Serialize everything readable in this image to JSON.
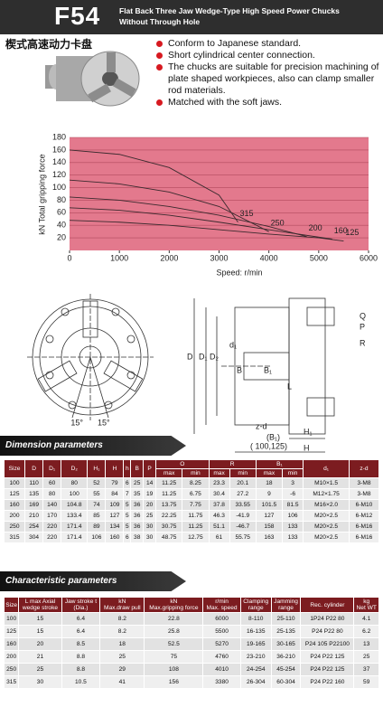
{
  "header": {
    "model": "F54",
    "title": "Flat Back Three Jaw Wedge-Type High Speed Power Chucks Without Through Hole",
    "subtitle_cn": "楔式高速动力卡盘"
  },
  "features": [
    "Conform to Japanese standard.",
    "Short cylindrical center connection.",
    "The chucks are suitable for precision machining of plate shaped workpieces, also can clamp smaller rod materials.",
    "Matched with the soft jaws."
  ],
  "chart_data": {
    "type": "line",
    "x_label": "Speed:  r/min",
    "y_label": "kN  Total gripping force",
    "xlim": [
      0,
      6000
    ],
    "xticks": [
      0,
      1000,
      2000,
      3000,
      4000,
      5000,
      6000
    ],
    "ylim": [
      0,
      180
    ],
    "yticks": [
      20,
      40,
      60,
      80,
      100,
      120,
      140,
      160,
      180
    ],
    "grid": true,
    "background": "#e3798d",
    "series": [
      {
        "name": "315",
        "color": "#3a2a2e",
        "x": [
          0,
          1000,
          2000,
          3000,
          3380
        ],
        "values": [
          160,
          153,
          132,
          88,
          45
        ]
      },
      {
        "name": "250",
        "color": "#3a2a2e",
        "x": [
          0,
          1000,
          2000,
          3000,
          4000
        ],
        "values": [
          112,
          106,
          93,
          70,
          30
        ]
      },
      {
        "name": "200",
        "color": "#3a2a2e",
        "x": [
          0,
          1000,
          2000,
          3000,
          4000,
          4760
        ],
        "values": [
          85,
          80,
          70,
          56,
          38,
          22
        ]
      },
      {
        "name": "160",
        "color": "#3a2a2e",
        "x": [
          0,
          1000,
          2000,
          3000,
          4000,
          5270
        ],
        "values": [
          68,
          64,
          56,
          45,
          33,
          18
        ]
      },
      {
        "name": "125",
        "color": "#3a2a2e",
        "x": [
          0,
          1000,
          2000,
          3000,
          4000,
          5000,
          5500
        ],
        "values": [
          48,
          45,
          40,
          33,
          26,
          20,
          15
        ]
      }
    ]
  },
  "drawing": {
    "labels": [
      "15°",
      "15°",
      "D",
      "D₁",
      "D₂",
      "d₁",
      "B",
      "B₁",
      "L",
      "z-d",
      "(B₁)",
      "( 100,125)",
      "H₁",
      "H",
      "Q",
      "P",
      "R"
    ]
  },
  "dimension_table": {
    "title": "Dimension parameters",
    "columns": [
      "Size",
      "D",
      "D₁",
      "D₂",
      "H₁",
      "H",
      "h",
      "B",
      "P"
    ],
    "groups": [
      "O",
      "R",
      "B₁"
    ],
    "sub": [
      "max",
      "min",
      "max",
      "min",
      "max",
      "min"
    ],
    "tail": [
      "d₁",
      "z-d"
    ],
    "rows": [
      [
        "100",
        "110",
        "60",
        "80",
        "52",
        "79",
        "6",
        "25",
        "14",
        "11.25",
        "8.25",
        "23.3",
        "20.1",
        "18",
        "3",
        "M10×1.5",
        "3-M8"
      ],
      [
        "125",
        "135",
        "80",
        "100",
        "55",
        "84",
        "7",
        "35",
        "19",
        "11.25",
        "6.75",
        "30.4",
        "27.2",
        "9",
        "-6",
        "M12×1.75",
        "3-M8"
      ],
      [
        "160",
        "169",
        "140",
        "104.8",
        "74",
        "109",
        "5",
        "36",
        "20",
        "13.75",
        "7.75",
        "37.8",
        "33.55",
        "101.5",
        "81.5",
        "M16×2.0",
        "6-M10"
      ],
      [
        "200",
        "210",
        "170",
        "133.4",
        "85",
        "127",
        "5",
        "36",
        "25",
        "22.25",
        "11.75",
        "46.3",
        "-41.9",
        "127",
        "106",
        "M20×2.5",
        "6-M12"
      ],
      [
        "250",
        "254",
        "220",
        "171.4",
        "89",
        "134",
        "5",
        "36",
        "30",
        "30.75",
        "11.25",
        "51.1",
        "-46.7",
        "158",
        "133",
        "M20×2.5",
        "6-M16"
      ],
      [
        "315",
        "304",
        "220",
        "171.4",
        "106",
        "160",
        "6",
        "38",
        "30",
        "48.75",
        "12.75",
        "61",
        "55.75",
        "163",
        "133",
        "M20×2.5",
        "6-M16"
      ]
    ]
  },
  "characteristic_table": {
    "title": "Characteristic parameters",
    "headers": [
      [
        "Size"
      ],
      [
        "L max Axial",
        "wedge stroke"
      ],
      [
        "Jaw stroke t",
        "(Dia.)"
      ],
      [
        "kN",
        "Max.draw pull"
      ],
      [
        "kN",
        "Max.gripping force"
      ],
      [
        "r/min",
        "Max. speed"
      ],
      [
        "Clamping",
        "range"
      ],
      [
        "Jamming",
        "range"
      ],
      [
        "Rec. cylinder"
      ],
      [
        "kg",
        "Net WT"
      ]
    ],
    "rows": [
      [
        "100",
        "15",
        "6.4",
        "8.2",
        "22.8",
        "6000",
        "8-110",
        "25-110",
        "1P24 P22 80",
        "4.1"
      ],
      [
        "125",
        "15",
        "6.4",
        "8.2",
        "25.8",
        "5500",
        "16-135",
        "25-135",
        "P24 P22 80",
        "6.2"
      ],
      [
        "160",
        "20",
        "8.5",
        "18",
        "52.5",
        "5270",
        "19-165",
        "30-165",
        "P24 105 P22100",
        "13"
      ],
      [
        "200",
        "21",
        "8.8",
        "25",
        "75",
        "4760",
        "23-210",
        "36-210",
        "P24 P22 125",
        "25"
      ],
      [
        "250",
        "25",
        "8.8",
        "29",
        "108",
        "4010",
        "24-254",
        "45-254",
        "P24 P22 125",
        "37"
      ],
      [
        "315",
        "30",
        "10.5",
        "41",
        "156",
        "3380",
        "26-304",
        "60-304",
        "P24 P22 160",
        "59"
      ]
    ]
  }
}
